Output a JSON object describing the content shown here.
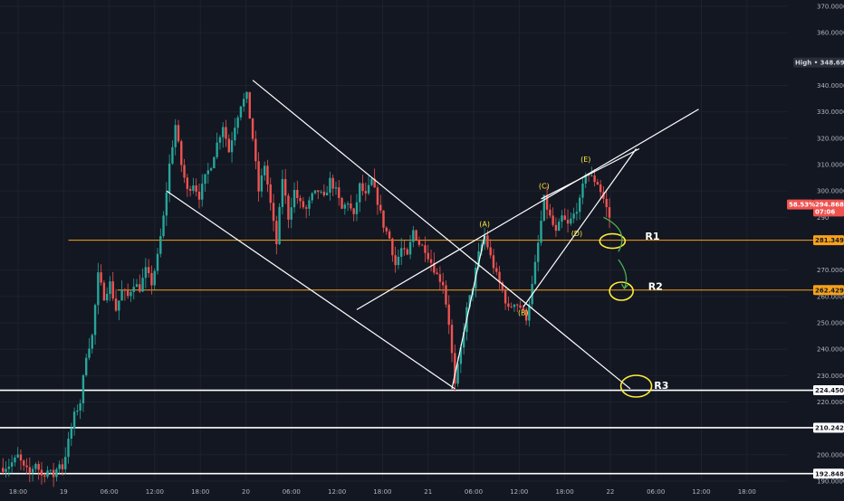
{
  "chart_data": {
    "type": "candlestick",
    "y_ticks": [
      "370.0000",
      "360.0000",
      "340.0000",
      "330.0000",
      "320.0000",
      "310.0000",
      "300.0000",
      "290",
      "270.0000",
      "260.0000",
      "250.0000",
      "240.0000",
      "230.0000",
      "220.0000",
      "200.0000",
      "190.0000"
    ],
    "x_ticks": [
      "18:00",
      "19",
      "06:00",
      "12:00",
      "18:00",
      "20",
      "06:00",
      "12:00",
      "18:00",
      "21",
      "06:00",
      "12:00",
      "18:00",
      "22",
      "06:00",
      "12:00",
      "18:00"
    ],
    "ylim": [
      189,
      371
    ],
    "price_tags": [
      {
        "label": "High",
        "value": "348.6969",
        "price": 348.7,
        "style": "high"
      },
      {
        "value": "294.8683",
        "price": 294.87,
        "style": "last"
      },
      {
        "value": "07:06",
        "price": 292.2,
        "style": "countdown"
      },
      {
        "value": "281.3491",
        "price": 281.35,
        "style": "orange"
      },
      {
        "value": "262.4296",
        "price": 262.43,
        "style": "orange"
      },
      {
        "value": "224.4508",
        "price": 224.45,
        "style": "white"
      },
      {
        "value": "210.2420",
        "price": 210.24,
        "style": "white"
      },
      {
        "value": "192.8487",
        "price": 192.85,
        "style": "white"
      }
    ],
    "percent_tag": "58.53%",
    "horizontal_levels": [
      {
        "price": 281.35,
        "color": "#f7a21b",
        "from_time": 20.0
      },
      {
        "price": 262.43,
        "color": "#f7a21b",
        "from_time": 36.5
      },
      {
        "price": 224.45,
        "color": "#ffffff",
        "from_time": -3
      },
      {
        "price": 210.24,
        "color": "#ffffff",
        "from_time": -3
      },
      {
        "price": 192.85,
        "color": "#ffffff",
        "from_time": -3
      }
    ],
    "wave_labels": [
      "(C)",
      "(A)",
      "(E)",
      "(D)",
      "(B)"
    ],
    "resistance_labels": [
      "R1",
      "R2",
      "R3"
    ],
    "accent_colors": {
      "up": "#26a69a",
      "down": "#ef5350",
      "level": "#f7a21b",
      "annotation": "#ffeb3b",
      "arrow": "#4caf50",
      "trendline": "#ffffff"
    },
    "price_path": [
      [
        -2,
        195
      ],
      [
        0,
        196
      ],
      [
        2,
        198
      ],
      [
        3,
        199.5
      ],
      [
        5,
        195
      ],
      [
        7,
        193
      ],
      [
        9,
        197
      ],
      [
        11,
        192
      ],
      [
        13,
        194
      ],
      [
        15,
        192
      ],
      [
        17,
        197
      ],
      [
        18,
        195
      ],
      [
        20,
        205
      ],
      [
        22,
        215
      ],
      [
        24,
        220
      ],
      [
        26,
        238
      ],
      [
        28,
        245
      ],
      [
        30,
        268
      ],
      [
        32,
        260
      ],
      [
        34,
        265
      ],
      [
        36,
        255
      ],
      [
        38,
        262
      ],
      [
        40,
        260
      ],
      [
        42,
        265
      ],
      [
        44,
        263
      ],
      [
        46,
        270
      ],
      [
        48,
        265
      ],
      [
        50,
        275
      ],
      [
        52,
        290
      ],
      [
        54,
        310
      ],
      [
        56,
        325
      ],
      [
        58,
        310
      ],
      [
        60,
        300
      ],
      [
        62,
        303
      ],
      [
        64,
        298
      ],
      [
        66,
        305
      ],
      [
        68,
        310
      ],
      [
        70,
        318
      ],
      [
        72,
        325
      ],
      [
        74,
        315
      ],
      [
        76,
        325
      ],
      [
        78,
        333
      ],
      [
        80,
        336
      ],
      [
        82,
        320
      ],
      [
        84,
        300
      ],
      [
        86,
        310
      ],
      [
        88,
        295
      ],
      [
        90,
        280
      ],
      [
        92,
        305
      ],
      [
        94,
        290
      ],
      [
        96,
        300
      ],
      [
        98,
        295
      ],
      [
        100,
        293
      ],
      [
        102,
        298
      ],
      [
        104,
        300
      ],
      [
        106,
        297
      ],
      [
        108,
        304
      ],
      [
        110,
        300
      ],
      [
        112,
        293
      ],
      [
        114,
        296
      ],
      [
        116,
        290
      ],
      [
        118,
        302
      ],
      [
        120,
        298
      ],
      [
        122,
        304
      ],
      [
        124,
        296
      ],
      [
        126,
        287
      ],
      [
        128,
        282
      ],
      [
        130,
        272
      ],
      [
        132,
        278
      ],
      [
        134,
        275
      ],
      [
        136,
        285
      ],
      [
        138,
        280
      ],
      [
        140,
        278
      ],
      [
        142,
        273
      ],
      [
        144,
        268
      ],
      [
        146,
        265
      ],
      [
        148,
        250
      ],
      [
        150,
        226
      ],
      [
        152,
        240
      ],
      [
        154,
        255
      ],
      [
        156,
        264
      ],
      [
        158,
        276
      ],
      [
        160,
        283
      ],
      [
        162,
        275
      ],
      [
        164,
        268
      ],
      [
        166,
        262
      ],
      [
        168,
        255
      ],
      [
        170,
        258
      ],
      [
        172,
        256
      ],
      [
        174,
        252
      ],
      [
        176,
        264
      ],
      [
        178,
        280
      ],
      [
        180,
        297
      ],
      [
        182,
        290
      ],
      [
        184,
        284
      ],
      [
        186,
        290
      ],
      [
        188,
        287
      ],
      [
        190,
        291
      ],
      [
        192,
        296
      ],
      [
        194,
        307
      ],
      [
        196,
        305
      ],
      [
        198,
        303
      ],
      [
        200,
        297
      ],
      [
        202,
        290
      ]
    ]
  }
}
